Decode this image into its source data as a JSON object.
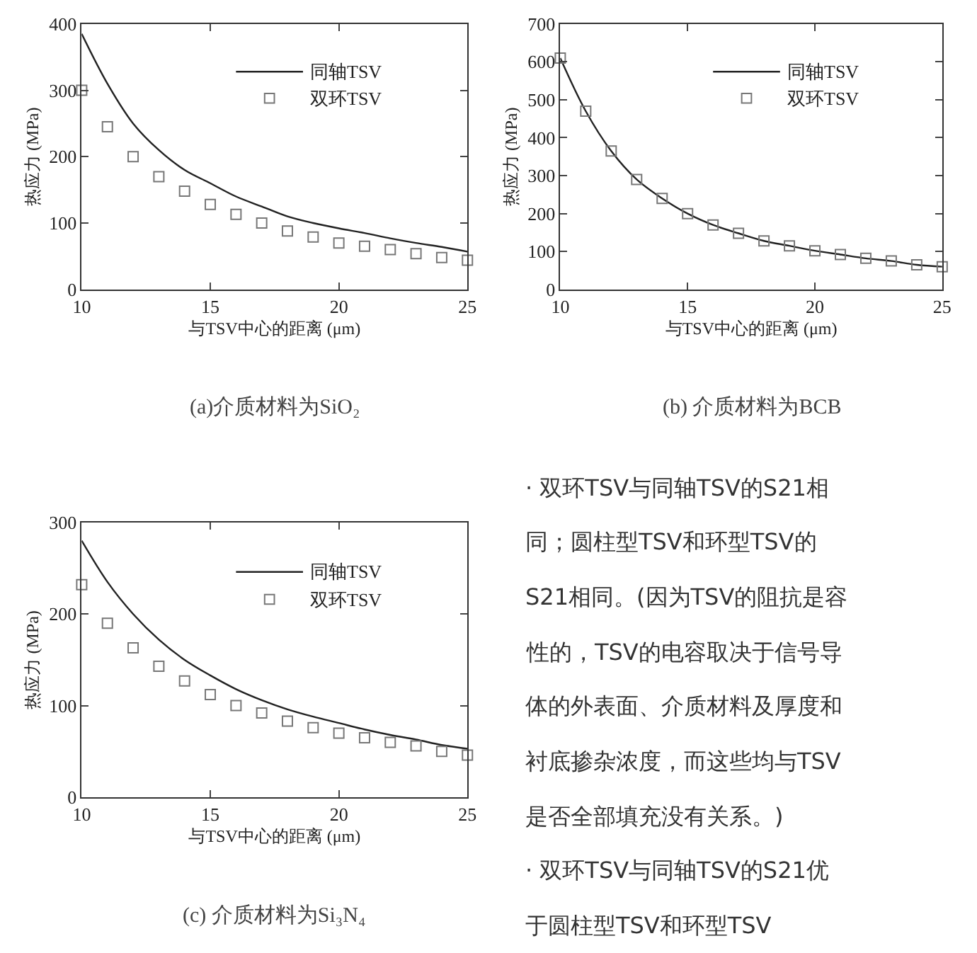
{
  "chart_data": [
    {
      "type": "line",
      "title": "(a)介质材料为SiO₂",
      "xlabel": "与TSV中心的距离 (μm)",
      "ylabel": "热应力 (MPa)",
      "x": [
        10,
        11,
        12,
        13,
        14,
        15,
        16,
        17,
        18,
        19,
        20,
        21,
        22,
        23,
        24,
        25
      ],
      "xlim": [
        10,
        25
      ],
      "xticks": [
        10,
        15,
        20,
        25
      ],
      "ylim": [
        0,
        400
      ],
      "yticks": [
        0,
        100,
        200,
        300,
        400
      ],
      "legend": "top right",
      "series": [
        {
          "name": "同轴TSV",
          "type": "line",
          "color": "#222222",
          "marker": "none",
          "values": [
            385,
            310,
            250,
            210,
            180,
            160,
            140,
            125,
            110,
            100,
            92,
            85,
            77,
            70,
            64,
            57
          ]
        },
        {
          "name": "双环TSV",
          "type": "scatter",
          "color": "#777777",
          "marker": "square",
          "values": [
            300,
            245,
            200,
            170,
            148,
            128,
            113,
            100,
            88,
            79,
            70,
            65,
            60,
            54,
            48,
            44
          ]
        }
      ]
    },
    {
      "type": "line",
      "title": "(b) 介质材料为BCB",
      "xlabel": "与TSV中心的距离 (μm)",
      "ylabel": "热应力 (MPa)",
      "x": [
        10,
        11,
        12,
        13,
        14,
        15,
        16,
        17,
        18,
        19,
        20,
        21,
        22,
        23,
        24,
        25
      ],
      "xlim": [
        10,
        25
      ],
      "xticks": [
        10,
        15,
        20,
        25
      ],
      "ylim": [
        0,
        700
      ],
      "yticks": [
        0,
        100,
        200,
        300,
        400,
        500,
        600,
        700
      ],
      "legend": "top right",
      "series": [
        {
          "name": "同轴TSV",
          "type": "line",
          "color": "#222222",
          "marker": "none",
          "values": [
            610,
            470,
            365,
            290,
            240,
            200,
            170,
            148,
            128,
            115,
            102,
            92,
            82,
            75,
            65,
            60
          ]
        },
        {
          "name": "双环TSV",
          "type": "scatter",
          "color": "#777777",
          "marker": "square",
          "values": [
            610,
            470,
            365,
            290,
            240,
            200,
            170,
            148,
            128,
            115,
            102,
            92,
            82,
            75,
            65,
            60
          ]
        }
      ]
    },
    {
      "type": "line",
      "title": "(c) 介质材料为Si₃N₄",
      "xlabel": "与TSV中心的距离 (μm)",
      "ylabel": "热应力 (MPa)",
      "x": [
        10,
        11,
        12,
        13,
        14,
        15,
        16,
        17,
        18,
        19,
        20,
        21,
        22,
        23,
        24,
        25
      ],
      "xlim": [
        10,
        25
      ],
      "xticks": [
        10,
        15,
        20,
        25
      ],
      "ylim": [
        0,
        300
      ],
      "yticks": [
        0,
        100,
        200,
        300
      ],
      "legend": "top right",
      "series": [
        {
          "name": "同轴TSV",
          "type": "line",
          "color": "#222222",
          "marker": "none",
          "values": [
            280,
            235,
            200,
            172,
            150,
            133,
            118,
            106,
            96,
            88,
            81,
            74,
            68,
            63,
            57,
            53
          ]
        },
        {
          "name": "双环TSV",
          "type": "scatter",
          "color": "#777777",
          "marker": "square",
          "values": [
            232,
            190,
            163,
            143,
            127,
            112,
            100,
            92,
            83,
            76,
            70,
            65,
            60,
            56,
            50,
            46
          ]
        }
      ]
    },
    {
      "type": "other",
      "annotations": [
        "· 双环TSV与同轴TSV的S21相",
        "同；圆柱型TSV和环型TSV的",
        "S21相同。(因为TSV的阻抗是容",
        "性的，TSV的电容取决于信号导",
        "体的外表面、介质材料及厚度和",
        "衬底掺杂浓度，而这些均与TSV",
        "是否全部填充没有关系。)",
        "· 双环TSV与同轴TSV的S21优",
        "于圆柱型TSV和环型TSV"
      ]
    }
  ]
}
